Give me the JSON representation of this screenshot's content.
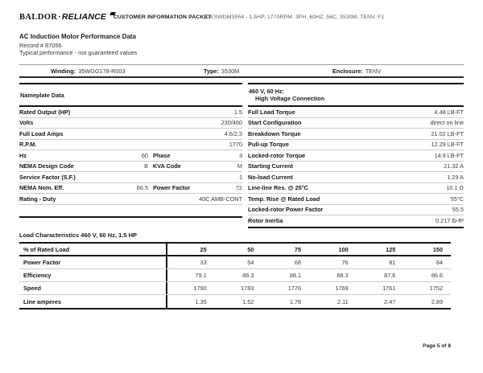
{
  "header": {
    "logo": {
      "brand_left": "BALDOR",
      "separator": "·",
      "brand_right": "RELIANCE"
    },
    "packet_label": "CUSTOMER INFORMATION PACKET",
    "product_line": "CESWDM3554 - 1.5HP, 1770RPM, 3PH, 60HZ, 56C, 3530M, TENV, F1"
  },
  "title_block": {
    "title": "AC Induction Motor Performance Data",
    "record": "Record # 87056",
    "note": "Typical performance - not guaranteed values"
  },
  "winding_bar": {
    "items": [
      {
        "label": "Winding:",
        "value": "35WGG178-R003"
      },
      {
        "label": "Type:",
        "value": "3530M"
      },
      {
        "label": "Enclosure:",
        "value": "TENV"
      }
    ]
  },
  "nameplate": {
    "header": "Nameplate Data",
    "rows": [
      {
        "label": "Rated Output (HP)",
        "value": "1.5"
      },
      {
        "label": "Volts",
        "value": "230/460"
      },
      {
        "label": "Full Load Amps",
        "value": "4.6/2.3"
      },
      {
        "label": "R.P.M.",
        "value": "1770"
      },
      {
        "label": "Hz",
        "mid": "60",
        "label2": "Phase",
        "value": "3"
      },
      {
        "label": "NEMA Design Code",
        "mid": "B",
        "label2": "KVA Code",
        "value": "M"
      },
      {
        "label": "Service Factor (S.F.)",
        "value": "1"
      },
      {
        "label": "NEMA Nom. Eff.",
        "mid": "86.5",
        "label2": "Power Factor",
        "value": "72"
      },
      {
        "label": "Rating - Duty",
        "value": "40C AMB-CONT"
      }
    ]
  },
  "hv_connection": {
    "header_line1": "460 V, 60 Hz:",
    "header_line2": "High Voltage Connection",
    "rows": [
      {
        "label": "Full Load Torque",
        "value": "4.48 LB-FT"
      },
      {
        "label": "Start Configuration",
        "value": "direct on line"
      },
      {
        "label": "Breakdown Torque",
        "value": "21.02 LB-FT"
      },
      {
        "label": "Pull-up Torque",
        "value": "12.29 LB-FT"
      },
      {
        "label": "Locked-rotor Torque",
        "value": "14.9 LB-FT"
      },
      {
        "label": "Starting Current",
        "value": "21.32 A"
      },
      {
        "label": "No-load Current",
        "value": "1.29 A"
      },
      {
        "label": "Line-line Res. @ 25°C",
        "value": "10.1 Ω"
      },
      {
        "label": "Temp. Rise @ Rated Load",
        "value": "55°C"
      },
      {
        "label": "Locked-rotor Power Factor",
        "value": "55.5"
      },
      {
        "label": "Rotor Inertia",
        "value": "0.217 lb-ft²"
      }
    ]
  },
  "load_table": {
    "section_title": "Load Characteristics 460 V, 60 Hz, 1.5 HP",
    "header_label": "% of Rated Load",
    "columns": [
      "25",
      "50",
      "75",
      "100",
      "125",
      "150"
    ],
    "rows": [
      {
        "label": "Power Factor",
        "values": [
          "33",
          "54",
          "68",
          "76",
          "81",
          "84"
        ]
      },
      {
        "label": "Efficiency",
        "values": [
          "79.1",
          "86.3",
          "88.1",
          "88.3",
          "87.6",
          "86.6"
        ]
      },
      {
        "label": "Speed",
        "values": [
          "1790",
          "1783",
          "1776",
          "1769",
          "1761",
          "1752"
        ]
      },
      {
        "label": "Line amperes",
        "values": [
          "1.35",
          "1.52",
          "1.78",
          "2.11",
          "2.47",
          "2.89"
        ]
      }
    ]
  },
  "footer": {
    "page_label": "Page 5 of 8"
  }
}
